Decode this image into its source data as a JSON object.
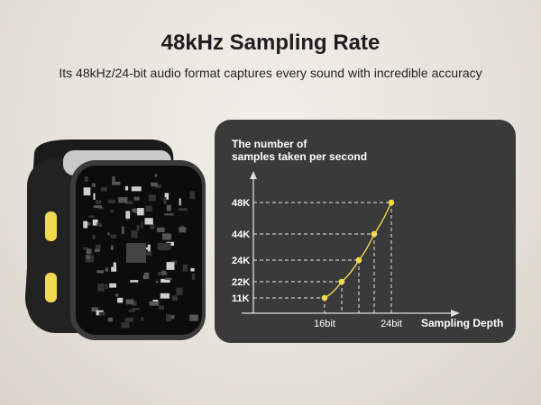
{
  "header": {
    "title": "48kHz Sampling Rate",
    "subtitle": "Its 48kHz/24-bit audio format captures every sound with incredible accuracy"
  },
  "product": {
    "icon": "wireless-microphone-device",
    "button_color": "#f2d94e"
  },
  "chart_data": {
    "type": "line",
    "ylabel_line1": "The number of",
    "ylabel_line2": "samples taken per second",
    "xlabel": "Sampling Depth",
    "y_ticks": [
      "11K",
      "22K",
      "24K",
      "44K",
      "48K"
    ],
    "x_ticks": [
      "16bit",
      "",
      "",
      "",
      "24bit"
    ],
    "values_k": [
      11,
      22,
      24,
      44,
      48
    ],
    "grid": "dashed guide lines",
    "line_color": "#f2d94e",
    "panel_color": "#3a3a3a"
  }
}
